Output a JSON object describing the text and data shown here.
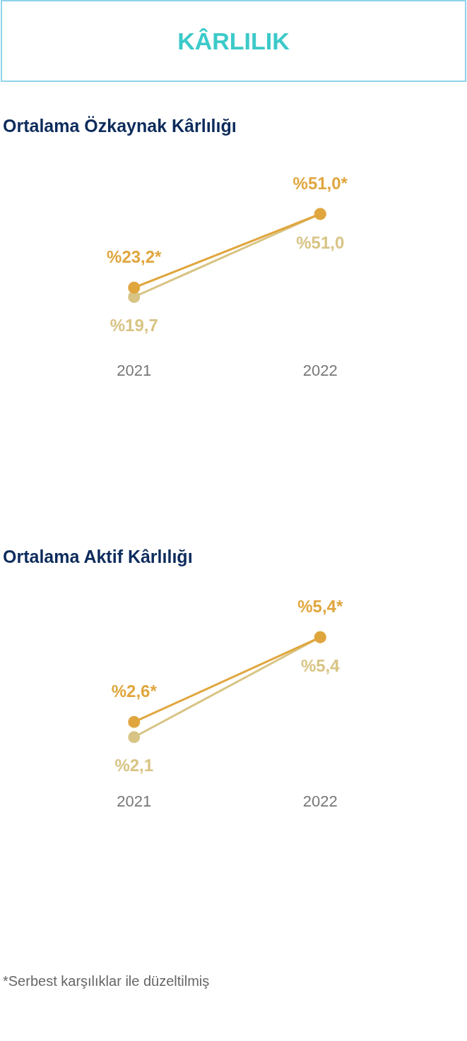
{
  "chart_data": [
    {
      "type": "line",
      "title": "KÂRLILIK",
      "subtitle": "Ortalama Özkaynak Kârlılığı",
      "categories": [
        "2021",
        "2022"
      ],
      "series": [
        {
          "color": "#e0a63e",
          "values": [
            23.2,
            51.0
          ],
          "value_labels": [
            "%23,2*",
            "%51,0*"
          ]
        },
        {
          "color": "#d8c484",
          "values": [
            19.7,
            51.0
          ],
          "value_labels": [
            "%19,7",
            "%51,0"
          ]
        }
      ],
      "marker": "circle",
      "legend": false,
      "grid": false,
      "tick_labels": "x"
    },
    {
      "type": "line",
      "subtitle": "Ortalama Aktif Kârlılığı",
      "categories": [
        "2021",
        "2022"
      ],
      "series": [
        {
          "color": "#e0a63e",
          "values": [
            2.6,
            5.4
          ],
          "value_labels": [
            "%2,6*",
            "%5,4*"
          ]
        },
        {
          "color": "#d8c484",
          "values": [
            2.1,
            5.4
          ],
          "value_labels": [
            "%2,1",
            "%5,4"
          ]
        }
      ],
      "marker": "circle",
      "legend": false,
      "grid": false,
      "tick_labels": "x",
      "annotations": [
        "*Serbest karşılıklar ile düzeltilmiş"
      ]
    }
  ]
}
